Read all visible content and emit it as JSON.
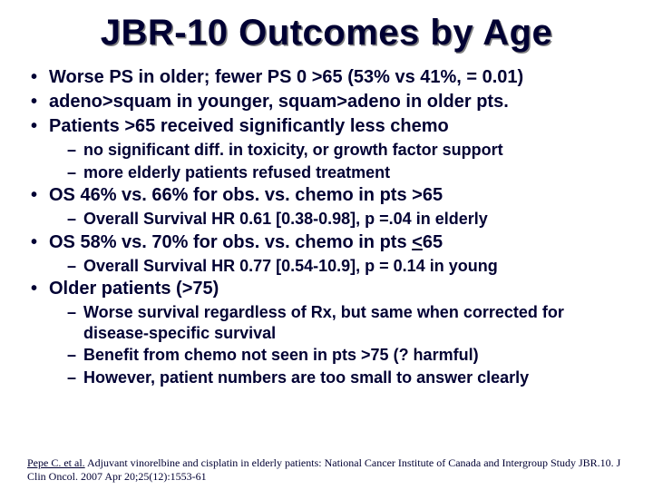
{
  "title": "JBR-10 Outcomes by Age",
  "b1": "Worse PS in older; fewer PS 0 >65 (53% vs 41%,  = 0.01)",
  "b2": "adeno>squam in younger, squam>adeno in older pts.",
  "b3": "Patients >65 received significantly less chemo",
  "b3_s1": "no significant diff. in toxicity, or growth factor support",
  "b3_s2": "more elderly patients refused treatment",
  "b4": "OS 46% vs. 66% for obs. vs. chemo in pts >65",
  "b4_s1": "Overall Survival HR 0.61 [0.38-0.98], p =.04 in elderly",
  "b5_pre": "OS 58% vs. 70% for obs. vs. chemo in pts ",
  "b5_u": "<",
  "b5_post": "65",
  "b5_s1": "Overall Survival HR 0.77 [0.54-10.9], p = 0.14 in young",
  "b6": "Older patients (>75)",
  "b6_s1": "Worse survival regardless of Rx, but same when corrected for disease-specific survival",
  "b6_s2": "Benefit from chemo not seen in pts >75 (? harmful)",
  "b6_s3": "However, patient numbers are too small to answer clearly",
  "cite_author": "Pepe C. et al.",
  "cite_rest": " Adjuvant vinorelbine and cisplatin in elderly patients: National Cancer Institute of Canada and Intergroup Study JBR.10. J Clin Oncol. 2007 Apr 20;25(12):1553-61"
}
